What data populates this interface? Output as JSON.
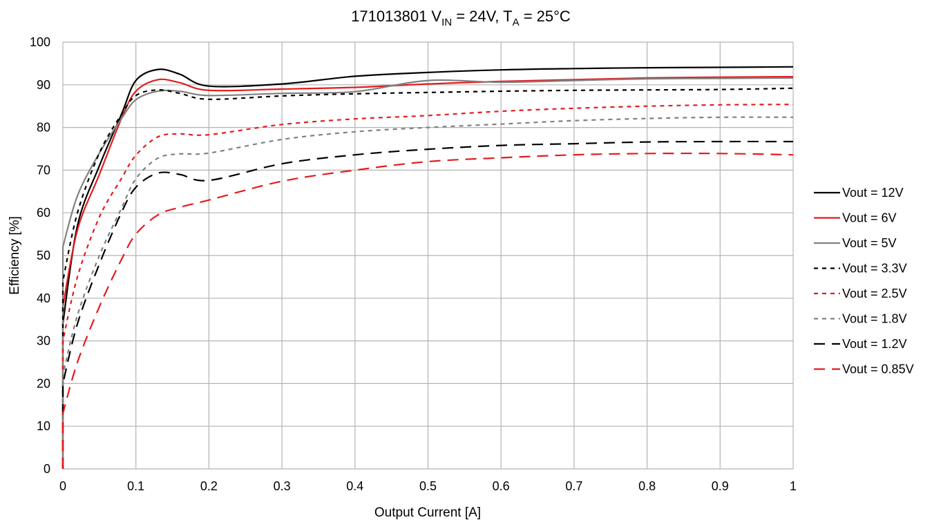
{
  "chart_data": {
    "type": "line",
    "title": {
      "part": "171013801 V",
      "vin_sub": "IN",
      "vin_rest": " = 24V, T",
      "ta_sub": "A",
      "ta_rest": " = 25°C"
    },
    "xlabel": "Output Current [A]",
    "ylabel": "Efficiency [%]",
    "xlim": [
      0,
      1
    ],
    "ylim": [
      0,
      100
    ],
    "x_ticks": [
      0,
      0.1,
      0.2,
      0.3,
      0.4,
      0.5,
      0.6,
      0.7,
      0.8,
      0.9,
      1
    ],
    "x_tick_labels": [
      "0",
      "0.1",
      "0.2",
      "0.3",
      "0.4",
      "0.5",
      "0.6",
      "0.7",
      "0.8",
      "0.9",
      "1"
    ],
    "y_ticks": [
      0,
      10,
      20,
      30,
      40,
      50,
      60,
      70,
      80,
      90,
      100
    ],
    "y_tick_labels": [
      "0",
      "10",
      "20",
      "30",
      "40",
      "50",
      "60",
      "70",
      "80",
      "90",
      "100"
    ],
    "grid": true,
    "legend_position": "right",
    "series": [
      {
        "name": "Vout = 12V",
        "color": "#000000",
        "style": "solid",
        "x": [
          0,
          0.02,
          0.05,
          0.08,
          0.1,
          0.13,
          0.16,
          0.2,
          0.3,
          0.4,
          0.5,
          0.6,
          0.7,
          0.8,
          0.9,
          1
        ],
        "y": [
          34,
          57,
          71,
          83,
          91,
          93.6,
          92.5,
          89.7,
          90.2,
          92,
          92.9,
          93.5,
          93.8,
          94,
          94.1,
          94.2
        ]
      },
      {
        "name": "Vout = 6V",
        "color": "#e41a1c",
        "style": "solid",
        "x": [
          0,
          0.02,
          0.05,
          0.08,
          0.1,
          0.13,
          0.16,
          0.2,
          0.3,
          0.4,
          0.5,
          0.6,
          0.7,
          0.8,
          0.9,
          1
        ],
        "y": [
          38,
          56,
          69,
          82,
          88.5,
          91.2,
          90.5,
          88.7,
          89,
          89.4,
          90.2,
          90.8,
          91.2,
          91.6,
          91.8,
          91.9
        ]
      },
      {
        "name": "Vout = 5V",
        "color": "#808080",
        "style": "solid",
        "x": [
          0,
          0.02,
          0.05,
          0.08,
          0.1,
          0.13,
          0.16,
          0.2,
          0.3,
          0.4,
          0.5,
          0.6,
          0.7,
          0.8,
          0.9,
          1
        ],
        "y": [
          52,
          64,
          74,
          82,
          86.5,
          88.5,
          88.5,
          87.5,
          88,
          88.4,
          91,
          90.6,
          91,
          91.4,
          91.5,
          91.6
        ]
      },
      {
        "name": "Vout = 3.3V",
        "color": "#000000",
        "style": "dash-short",
        "x": [
          0,
          0.02,
          0.05,
          0.08,
          0.1,
          0.13,
          0.16,
          0.2,
          0.3,
          0.4,
          0.5,
          0.6,
          0.7,
          0.8,
          0.9,
          1
        ],
        "y": [
          44,
          60,
          74,
          83,
          87.5,
          88.8,
          88,
          86.6,
          87.4,
          87.9,
          88.2,
          88.5,
          88.7,
          88.8,
          88.9,
          89.2
        ]
      },
      {
        "name": "Vout = 2.5V",
        "color": "#e41a1c",
        "style": "dash-short",
        "x": [
          0,
          0.02,
          0.05,
          0.08,
          0.1,
          0.13,
          0.16,
          0.2,
          0.3,
          0.4,
          0.5,
          0.6,
          0.7,
          0.8,
          0.9,
          1
        ],
        "y": [
          30,
          45,
          59,
          68,
          73.5,
          77.8,
          78.5,
          78.3,
          80.7,
          82,
          82.8,
          83.8,
          84.5,
          85,
          85.3,
          85.4
        ]
      },
      {
        "name": "Vout = 1.8V",
        "color": "#808080",
        "style": "dash-short",
        "x": [
          0,
          0.02,
          0.05,
          0.08,
          0.1,
          0.13,
          0.16,
          0.2,
          0.3,
          0.4,
          0.5,
          0.6,
          0.7,
          0.8,
          0.9,
          1
        ],
        "y": [
          22,
          36,
          50,
          61,
          68,
          72.8,
          73.8,
          74,
          77.2,
          79,
          80,
          80.8,
          81.6,
          82.1,
          82.4,
          82.4
        ]
      },
      {
        "name": "Vout = 1.2V",
        "color": "#000000",
        "style": "dash-long",
        "x": [
          0,
          0.02,
          0.05,
          0.08,
          0.1,
          0.13,
          0.16,
          0.2,
          0.3,
          0.4,
          0.5,
          0.6,
          0.7,
          0.8,
          0.9,
          1
        ],
        "y": [
          20,
          34,
          48,
          60,
          66,
          69.3,
          69,
          67.6,
          71.5,
          73.6,
          74.9,
          75.8,
          76.2,
          76.6,
          76.7,
          76.7
        ]
      },
      {
        "name": "Vout = 0.85V",
        "color": "#e41a1c",
        "style": "dash-long",
        "x": [
          0,
          0.02,
          0.05,
          0.08,
          0.1,
          0.13,
          0.16,
          0.2,
          0.3,
          0.4,
          0.5,
          0.6,
          0.7,
          0.8,
          0.9,
          1
        ],
        "y": [
          13,
          25,
          38,
          49,
          55,
          59.5,
          61.3,
          63,
          67.4,
          70,
          72,
          72.9,
          73.6,
          73.9,
          73.9,
          73.6
        ]
      }
    ]
  }
}
